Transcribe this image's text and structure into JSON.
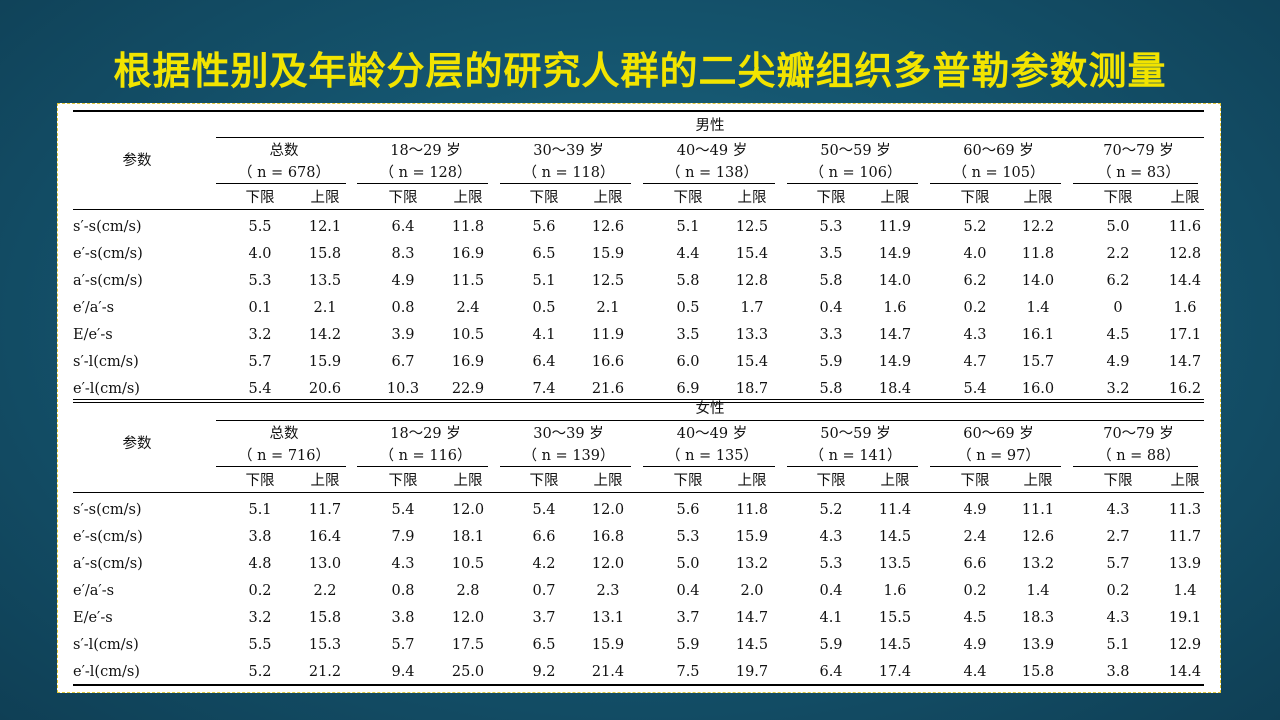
{
  "title": "根据性别及年龄分层的研究人群的二尖瓣组织多普勒参数测量",
  "table": {
    "param_header": "参数",
    "lower_label": "下限",
    "upper_label": "上限",
    "sections": [
      {
        "sex": "男性",
        "groups": [
          {
            "name": "总数",
            "n": "（ n  = 678）"
          },
          {
            "name": "18～29 岁",
            "n": "（ n  = 128）"
          },
          {
            "name": "30～39 岁",
            "n": "（ n  = 118）"
          },
          {
            "name": "40～49 岁",
            "n": "（ n  = 138）"
          },
          {
            "name": "50～59 岁",
            "n": "（ n  = 106）"
          },
          {
            "name": "60～69 岁",
            "n": "（ n  = 105）"
          },
          {
            "name": "70～79 岁",
            "n": "（ n  = 83）"
          }
        ],
        "rows": [
          {
            "param": "s′-s(cm/s)",
            "values": [
              "5.5",
              "12.1",
              "6.4",
              "11.8",
              "5.6",
              "12.6",
              "5.1",
              "12.5",
              "5.3",
              "11.9",
              "5.2",
              "12.2",
              "5.0",
              "11.6"
            ]
          },
          {
            "param": "e′-s(cm/s)",
            "values": [
              "4.0",
              "15.8",
              "8.3",
              "16.9",
              "6.5",
              "15.9",
              "4.4",
              "15.4",
              "3.5",
              "14.9",
              "4.0",
              "11.8",
              "2.2",
              "12.8"
            ]
          },
          {
            "param": "a′-s(cm/s)",
            "values": [
              "5.3",
              "13.5",
              "4.9",
              "11.5",
              "5.1",
              "12.5",
              "5.8",
              "12.8",
              "5.8",
              "14.0",
              "6.2",
              "14.0",
              "6.2",
              "14.4"
            ]
          },
          {
            "param": "e′/a′-s",
            "values": [
              "0.1",
              "2.1",
              "0.8",
              "2.4",
              "0.5",
              "2.1",
              "0.5",
              "1.7",
              "0.4",
              "1.6",
              "0.2",
              "1.4",
              "0",
              "1.6"
            ]
          },
          {
            "param": "E/e′-s",
            "values": [
              "3.2",
              "14.2",
              "3.9",
              "10.5",
              "4.1",
              "11.9",
              "3.5",
              "13.3",
              "3.3",
              "14.7",
              "4.3",
              "16.1",
              "4.5",
              "17.1"
            ]
          },
          {
            "param": "s′-l(cm/s)",
            "values": [
              "5.7",
              "15.9",
              "6.7",
              "16.9",
              "6.4",
              "16.6",
              "6.0",
              "15.4",
              "5.9",
              "14.9",
              "4.7",
              "15.7",
              "4.9",
              "14.7"
            ]
          },
          {
            "param": "e′-l(cm/s)",
            "values": [
              "5.4",
              "20.6",
              "10.3",
              "22.9",
              "7.4",
              "21.6",
              "6.9",
              "18.7",
              "5.8",
              "18.4",
              "5.4",
              "16.0",
              "3.2",
              "16.2"
            ]
          }
        ]
      },
      {
        "sex": "女性",
        "groups": [
          {
            "name": "总数",
            "n": "（ n  = 716）"
          },
          {
            "name": "18～29 岁",
            "n": "（ n  = 116）"
          },
          {
            "name": "30～39 岁",
            "n": "（ n  = 139）"
          },
          {
            "name": "40～49 岁",
            "n": "（ n  = 135）"
          },
          {
            "name": "50～59 岁",
            "n": "（ n  = 141）"
          },
          {
            "name": "60～69 岁",
            "n": "（ n  = 97）"
          },
          {
            "name": "70～79 岁",
            "n": "（ n  = 88）"
          }
        ],
        "rows": [
          {
            "param": "s′-s(cm/s)",
            "values": [
              "5.1",
              "11.7",
              "5.4",
              "12.0",
              "5.4",
              "12.0",
              "5.6",
              "11.8",
              "5.2",
              "11.4",
              "4.9",
              "11.1",
              "4.3",
              "11.3"
            ]
          },
          {
            "param": "e′-s(cm/s)",
            "values": [
              "3.8",
              "16.4",
              "7.9",
              "18.1",
              "6.6",
              "16.8",
              "5.3",
              "15.9",
              "4.3",
              "14.5",
              "2.4",
              "12.6",
              "2.7",
              "11.7"
            ]
          },
          {
            "param": "a′-s(cm/s)",
            "values": [
              "4.8",
              "13.0",
              "4.3",
              "10.5",
              "4.2",
              "12.0",
              "5.0",
              "13.2",
              "5.3",
              "13.5",
              "6.6",
              "13.2",
              "5.7",
              "13.9"
            ]
          },
          {
            "param": "e′/a′-s",
            "values": [
              "0.2",
              "2.2",
              "0.8",
              "2.8",
              "0.7",
              "2.3",
              "0.4",
              "2.0",
              "0.4",
              "1.6",
              "0.2",
              "1.4",
              "0.2",
              "1.4"
            ]
          },
          {
            "param": "E/e′-s",
            "values": [
              "3.2",
              "15.8",
              "3.8",
              "12.0",
              "3.7",
              "13.1",
              "3.7",
              "14.7",
              "4.1",
              "15.5",
              "4.5",
              "18.3",
              "4.3",
              "19.1"
            ]
          },
          {
            "param": "s′-l(cm/s)",
            "values": [
              "5.5",
              "15.3",
              "5.7",
              "17.5",
              "6.5",
              "15.9",
              "5.9",
              "14.5",
              "5.9",
              "14.5",
              "4.9",
              "13.9",
              "5.1",
              "12.9"
            ]
          },
          {
            "param": "e′-l(cm/s)",
            "values": [
              "5.2",
              "21.2",
              "9.4",
              "25.0",
              "9.2",
              "21.4",
              "7.5",
              "19.7",
              "6.4",
              "17.4",
              "4.4",
              "15.8",
              "3.8",
              "14.4"
            ]
          }
        ]
      }
    ]
  }
}
